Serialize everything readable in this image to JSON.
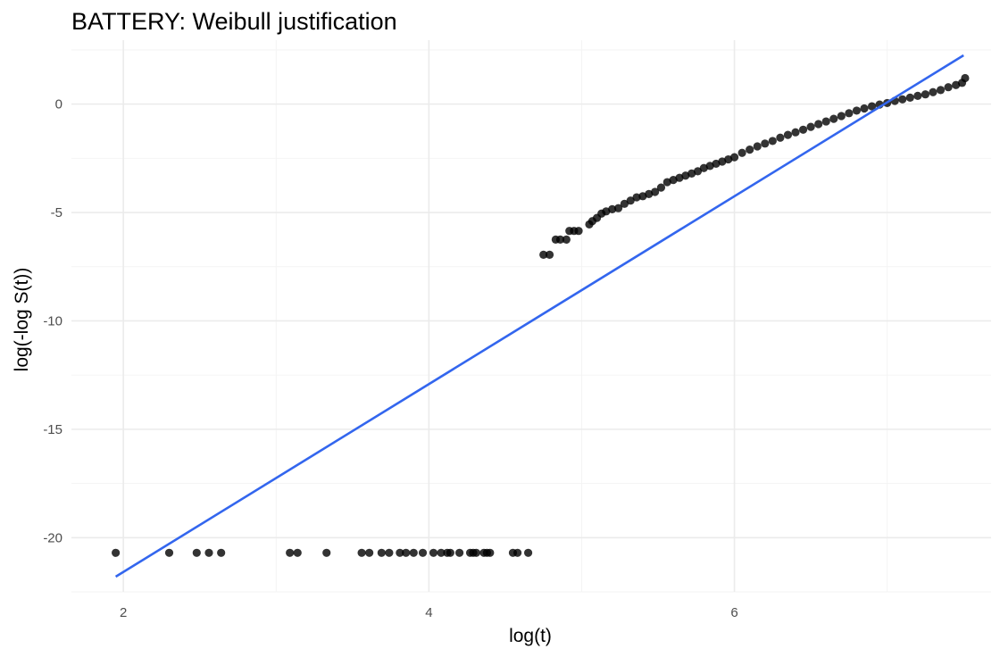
{
  "chart_data": {
    "type": "scatter",
    "title": "BATTERY: Weibull justification",
    "xlabel": "log(t)",
    "ylabel": "log(-log S(t))",
    "xlim": [
      1.66,
      7.68
    ],
    "ylim": [
      -22.5,
      2.95
    ],
    "x_ticks": [
      2,
      4,
      6
    ],
    "x_tick_labels": [
      "2",
      "4",
      "6"
    ],
    "x_minor_ticks": [
      3,
      5,
      7
    ],
    "y_ticks": [
      -20,
      -15,
      -10,
      -5,
      0
    ],
    "y_tick_labels": [
      "-20",
      "-15",
      "-10",
      "-5",
      "0"
    ],
    "y_minor_ticks": [
      -22.5,
      -17.5,
      -12.5,
      -7.5,
      -2.5,
      2.5
    ],
    "grid": true,
    "legend": "none",
    "point_color": "#000000",
    "line_color": "#3366EE",
    "series": [
      {
        "kind": "points",
        "x": [
          1.95,
          2.3,
          2.48,
          2.56,
          2.64,
          3.09,
          3.14,
          3.33,
          3.56,
          3.61,
          3.69,
          3.74,
          3.81,
          3.85,
          3.9,
          3.96,
          4.03,
          4.08,
          4.12,
          4.14,
          4.2,
          4.27,
          4.29,
          4.31,
          4.36,
          4.38,
          4.4,
          4.55,
          4.58,
          4.65,
          4.75,
          4.79,
          4.83,
          4.86,
          4.9,
          4.92,
          4.95,
          4.98,
          5.05,
          5.07,
          5.1,
          5.13,
          5.16,
          5.2,
          5.24,
          5.28,
          5.32,
          5.36,
          5.4,
          5.44,
          5.48,
          5.52,
          5.56,
          5.6,
          5.64,
          5.68,
          5.72,
          5.76,
          5.8,
          5.84,
          5.88,
          5.92,
          5.96,
          6.0,
          6.05,
          6.1,
          6.15,
          6.2,
          6.25,
          6.3,
          6.35,
          6.4,
          6.45,
          6.5,
          6.55,
          6.6,
          6.65,
          6.7,
          6.75,
          6.8,
          6.85,
          6.9,
          6.95,
          7.0,
          7.05,
          7.1,
          7.15,
          7.2,
          7.25,
          7.3,
          7.35,
          7.4,
          7.45,
          7.49,
          7.51
        ],
        "y": [
          -20.7,
          -20.7,
          -20.7,
          -20.7,
          -20.7,
          -20.7,
          -20.7,
          -20.7,
          -20.7,
          -20.7,
          -20.7,
          -20.7,
          -20.7,
          -20.7,
          -20.7,
          -20.7,
          -20.7,
          -20.7,
          -20.7,
          -20.7,
          -20.7,
          -20.7,
          -20.7,
          -20.7,
          -20.7,
          -20.7,
          -20.7,
          -20.7,
          -20.7,
          -20.7,
          -6.95,
          -6.95,
          -6.25,
          -6.25,
          -6.25,
          -5.85,
          -5.85,
          -5.85,
          -5.55,
          -5.4,
          -5.25,
          -5.05,
          -4.95,
          -4.85,
          -4.8,
          -4.6,
          -4.45,
          -4.3,
          -4.25,
          -4.15,
          -4.05,
          -3.85,
          -3.6,
          -3.5,
          -3.4,
          -3.3,
          -3.2,
          -3.1,
          -2.95,
          -2.85,
          -2.75,
          -2.65,
          -2.55,
          -2.45,
          -2.25,
          -2.1,
          -1.95,
          -1.82,
          -1.7,
          -1.55,
          -1.42,
          -1.3,
          -1.18,
          -1.05,
          -0.92,
          -0.8,
          -0.68,
          -0.55,
          -0.42,
          -0.3,
          -0.2,
          -0.1,
          -0.02,
          0.05,
          0.15,
          0.22,
          0.3,
          0.38,
          0.45,
          0.55,
          0.65,
          0.78,
          0.88,
          0.98,
          1.2
        ]
      },
      {
        "kind": "line",
        "x": [
          1.95,
          7.5
        ],
        "y": [
          -21.8,
          2.25
        ]
      }
    ]
  }
}
